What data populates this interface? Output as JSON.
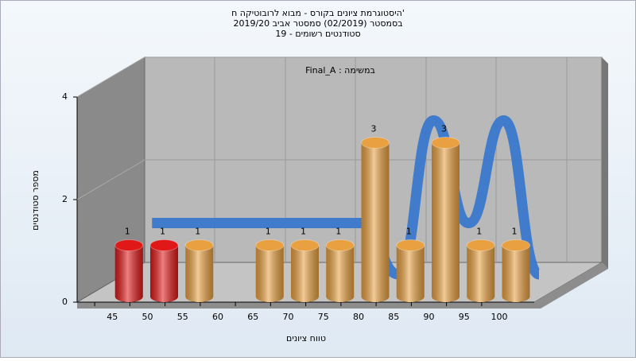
{
  "chart_data": {
    "type": "bar3d",
    "title": [
      "היסטוגרמת ציונים בקורס - מבוא לרובוטיקה ח'",
      "בסמסטר (02/2019) סמסטר אביב 2019/20",
      "סטודנטים רשומים - 19"
    ],
    "annotation": "במשימה : Final_A",
    "x_label": "טווח ציונים",
    "y_label": "מספר סטודנטים",
    "categories": [
      "45",
      "50",
      "55",
      "60",
      "65",
      "70",
      "75",
      "80",
      "85",
      "90",
      "95",
      "100"
    ],
    "values": [
      1,
      1,
      1,
      0,
      1,
      1,
      1,
      3,
      1,
      3,
      1,
      1
    ],
    "colors": [
      "#e01818",
      "#e01818",
      "#e8a040",
      "#e8a040",
      "#e8a040",
      "#e8a040",
      "#e8a040",
      "#e8a040",
      "#e8a040",
      "#e8a040",
      "#e8a040",
      "#e8a040"
    ],
    "line": {
      "color": "#3a78cc",
      "values": [
        1,
        1,
        1,
        1,
        1,
        1,
        1,
        0,
        3,
        1,
        3,
        0
      ]
    },
    "ylim": [
      0,
      4
    ],
    "yticks": [
      0,
      2,
      4
    ],
    "grid": true
  }
}
